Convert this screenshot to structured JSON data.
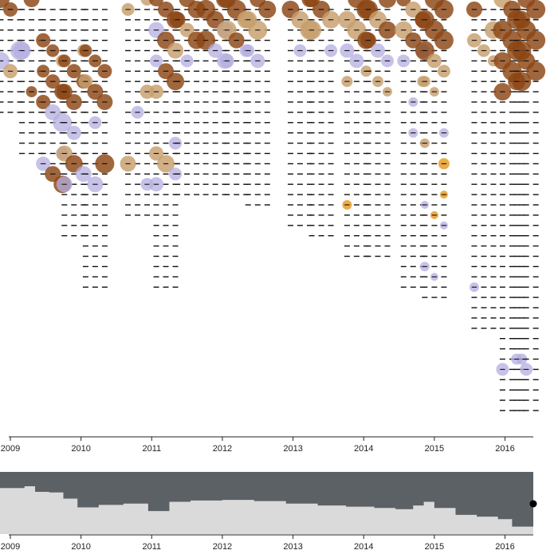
{
  "chart_data": {
    "type": "scatter",
    "x_axis": {
      "min": 2009.0,
      "max": 2016.4,
      "ticks": [
        {
          "value": 2009,
          "label": "2009"
        },
        {
          "value": 2010,
          "label": "2010"
        },
        {
          "value": 2011,
          "label": "2011"
        },
        {
          "value": 2012,
          "label": "2012"
        },
        {
          "value": 2013,
          "label": "2013"
        },
        {
          "value": 2014,
          "label": "2014"
        },
        {
          "value": 2015,
          "label": "2015"
        },
        {
          "value": 2016,
          "label": "2016"
        }
      ]
    },
    "colors": {
      "dark_brown": "#8B4513",
      "tan": "#C79F6E",
      "lavender": "#B3AEE0",
      "orange": "#E69A1E",
      "overview_fill": "#5C6166",
      "overview_area": "#DADADA",
      "axis": "#222222"
    },
    "columns": [
      {
        "x": 2009.0,
        "count": 12,
        "bubbles": [
          [
            0,
            "dark",
            11
          ],
          [
            1,
            "dark",
            9
          ],
          [
            5,
            "lav",
            12
          ],
          [
            6,
            "lav",
            11
          ],
          [
            7,
            "tan",
            9
          ]
        ]
      },
      {
        "x": 2009.3,
        "count": 16,
        "bubbles": [
          [
            0,
            "dark",
            10
          ],
          [
            5,
            "lav",
            11
          ],
          [
            9,
            "dark",
            7
          ]
        ]
      },
      {
        "x": 2009.6,
        "count": 18,
        "bubbles": [
          [
            4,
            "dark",
            9
          ],
          [
            5,
            "dark",
            8
          ],
          [
            6,
            "tan",
            8
          ],
          [
            7,
            "dark",
            8
          ],
          [
            8,
            "dark",
            9
          ],
          [
            9,
            "dark",
            10
          ],
          [
            10,
            "dark",
            9
          ],
          [
            11,
            "lav",
            10
          ],
          [
            12,
            "lav",
            12
          ],
          [
            15,
            "lav",
            8
          ],
          [
            16,
            "lav",
            9
          ],
          [
            17,
            "dark",
            10
          ],
          [
            18,
            "dark",
            11
          ]
        ]
      },
      {
        "x": 2009.9,
        "count": 24,
        "bubbles": [
          [
            5,
            "tan",
            8
          ],
          [
            6,
            "dark",
            8
          ],
          [
            7,
            "dark",
            9
          ],
          [
            8,
            "dark",
            9
          ],
          [
            9,
            "dark",
            10
          ],
          [
            10,
            "dark",
            10
          ],
          [
            13,
            "lav",
            9
          ],
          [
            15,
            "tan",
            10
          ],
          [
            16,
            "dark",
            11
          ],
          [
            17,
            "lav",
            10
          ],
          [
            18,
            "lav",
            10
          ]
        ]
      },
      {
        "x": 2010.2,
        "count": 29,
        "bubbles": [
          [
            5,
            "dark",
            8
          ],
          [
            6,
            "dark",
            8
          ],
          [
            7,
            "dark",
            9
          ],
          [
            8,
            "tan",
            9
          ],
          [
            9,
            "dark",
            10
          ],
          [
            10,
            "dark",
            10
          ],
          [
            12,
            "lav",
            8
          ],
          [
            16,
            "dark",
            12
          ],
          [
            18,
            "lav",
            10
          ]
        ]
      },
      {
        "x": 2010.8,
        "count": 22,
        "bubbles": [
          [
            0,
            "tan",
            8
          ],
          [
            1,
            "tan",
            8
          ],
          [
            9,
            "tan",
            9
          ],
          [
            11,
            "lav",
            8
          ],
          [
            16,
            "tan",
            10
          ],
          [
            18,
            "lav",
            8
          ]
        ]
      },
      {
        "x": 2011.2,
        "count": 29,
        "bubbles": [
          [
            0,
            "dark",
            9
          ],
          [
            1,
            "dark",
            10
          ],
          [
            2,
            "dark",
            11
          ],
          [
            3,
            "lav",
            10
          ],
          [
            4,
            "dark",
            11
          ],
          [
            5,
            "tan",
            10
          ],
          [
            6,
            "lav",
            8
          ],
          [
            7,
            "dark",
            10
          ],
          [
            8,
            "dark",
            11
          ],
          [
            9,
            "tan",
            9
          ],
          [
            14,
            "lav",
            8
          ],
          [
            15,
            "tan",
            9
          ],
          [
            16,
            "tan",
            11
          ],
          [
            17,
            "lav",
            8
          ],
          [
            18,
            "lav",
            9
          ]
        ]
      },
      {
        "x": 2011.5,
        "count": 20,
        "bubbles": [
          [
            0,
            "dark",
            10
          ],
          [
            1,
            "dark",
            11
          ],
          [
            2,
            "dark",
            10
          ],
          [
            3,
            "tan",
            9
          ],
          [
            4,
            "dark",
            11
          ],
          [
            6,
            "lav",
            8
          ]
        ]
      },
      {
        "x": 2011.9,
        "count": 20,
        "bubbles": [
          [
            0,
            "dark",
            11
          ],
          [
            1,
            "dark",
            12
          ],
          [
            2,
            "dark",
            11
          ],
          [
            3,
            "lav",
            10
          ],
          [
            4,
            "dark",
            12
          ],
          [
            5,
            "lav",
            9
          ],
          [
            6,
            "lav",
            10
          ]
        ]
      },
      {
        "x": 2012.2,
        "count": 20,
        "bubbles": [
          [
            0,
            "dark",
            11
          ],
          [
            1,
            "dark",
            12
          ],
          [
            2,
            "tan",
            11
          ],
          [
            3,
            "tan",
            12
          ],
          [
            4,
            "dark",
            10
          ],
          [
            5,
            "lav",
            8
          ],
          [
            6,
            "lav",
            9
          ]
        ]
      },
      {
        "x": 2012.5,
        "count": 21,
        "bubbles": [
          [
            0,
            "dark",
            10
          ],
          [
            1,
            "dark",
            11
          ],
          [
            2,
            "tan",
            11
          ],
          [
            3,
            "tan",
            12
          ],
          [
            5,
            "lav",
            8
          ],
          [
            6,
            "lav",
            9
          ]
        ]
      },
      {
        "x": 2013.1,
        "count": 23,
        "bubbles": [
          [
            0,
            "dark",
            10
          ],
          [
            1,
            "dark",
            11
          ],
          [
            2,
            "tan",
            11
          ],
          [
            3,
            "tan",
            12
          ],
          [
            5,
            "lav",
            8
          ]
        ]
      },
      {
        "x": 2013.4,
        "count": 24,
        "bubbles": [
          [
            0,
            "dark",
            10
          ],
          [
            1,
            "dark",
            11
          ],
          [
            2,
            "tan",
            11
          ],
          [
            3,
            "tan",
            12
          ],
          [
            5,
            "lav",
            8
          ]
        ]
      },
      {
        "x": 2013.9,
        "count": 26,
        "bubbles": [
          [
            0,
            "dark",
            11
          ],
          [
            1,
            "dark",
            12
          ],
          [
            2,
            "tan",
            11
          ],
          [
            3,
            "tan",
            12
          ],
          [
            4,
            "dark",
            11
          ],
          [
            5,
            "lav",
            9
          ],
          [
            6,
            "lav",
            9
          ],
          [
            7,
            "tan",
            7
          ],
          [
            8,
            "tan",
            7
          ],
          [
            20,
            "orange",
            6
          ]
        ]
      },
      {
        "x": 2014.2,
        "count": 26,
        "bubbles": [
          [
            0,
            "dark",
            11
          ],
          [
            1,
            "dark",
            12
          ],
          [
            2,
            "tan",
            11
          ],
          [
            3,
            "dark",
            11
          ],
          [
            4,
            "dark",
            10
          ],
          [
            5,
            "lav",
            9
          ],
          [
            6,
            "lav",
            8
          ],
          [
            8,
            "tan",
            7
          ],
          [
            9,
            "tan",
            6
          ]
        ]
      },
      {
        "x": 2014.7,
        "count": 29,
        "bubbles": [
          [
            0,
            "dark",
            9
          ],
          [
            1,
            "tan",
            10
          ],
          [
            2,
            "dark",
            10
          ],
          [
            3,
            "tan",
            11
          ],
          [
            4,
            "dark",
            10
          ],
          [
            5,
            "lav",
            9
          ],
          [
            6,
            "lav",
            8
          ],
          [
            8,
            "tan",
            7
          ],
          [
            10,
            "lav",
            6
          ],
          [
            13,
            "lav",
            6
          ]
        ]
      },
      {
        "x": 2015.0,
        "count": 30,
        "bubbles": [
          [
            0,
            "dark",
            12
          ],
          [
            1,
            "dark",
            12
          ],
          [
            2,
            "dark",
            12
          ],
          [
            3,
            "dark",
            12
          ],
          [
            4,
            "dark",
            12
          ],
          [
            5,
            "dark",
            12
          ],
          [
            6,
            "tan",
            9
          ],
          [
            7,
            "tan",
            8
          ],
          [
            8,
            "tan",
            7
          ],
          [
            9,
            "tan",
            6
          ],
          [
            13,
            "lav",
            6
          ],
          [
            14,
            "tan",
            6
          ],
          [
            16,
            "orange",
            7
          ],
          [
            19,
            "orange",
            5
          ],
          [
            20,
            "lav",
            5
          ],
          [
            21,
            "orange",
            5
          ],
          [
            22,
            "lav",
            5
          ],
          [
            26,
            "lav",
            6
          ],
          [
            27,
            "lav",
            5
          ]
        ]
      },
      {
        "x": 2015.7,
        "count": 33,
        "bubbles": [
          [
            1,
            "dark",
            10
          ],
          [
            3,
            "tan",
            11
          ],
          [
            4,
            "tan",
            9
          ],
          [
            5,
            "tan",
            8
          ],
          [
            6,
            "tan",
            7
          ],
          [
            28,
            "lav",
            6
          ]
        ]
      },
      {
        "x": 2016.1,
        "count": 41,
        "bubbles": [
          [
            0,
            "tan",
            11
          ],
          [
            1,
            "dark",
            11
          ],
          [
            2,
            "dark",
            11
          ],
          [
            3,
            "dark",
            12
          ],
          [
            4,
            "dark",
            12
          ],
          [
            5,
            "dark",
            12
          ],
          [
            6,
            "dark",
            11
          ],
          [
            7,
            "dark",
            12
          ],
          [
            8,
            "dark",
            12
          ],
          [
            9,
            "dark",
            11
          ],
          [
            35,
            "lav",
            7
          ],
          [
            36,
            "lav",
            8
          ]
        ]
      },
      {
        "x": 2016.3,
        "count": 41,
        "bubbles": [
          [
            0,
            "dark",
            11
          ],
          [
            1,
            "dark",
            12
          ],
          [
            2,
            "dark",
            12
          ],
          [
            3,
            "dark",
            12
          ],
          [
            4,
            "dark",
            12
          ],
          [
            5,
            "dark",
            12
          ],
          [
            6,
            "dark",
            11
          ],
          [
            7,
            "dark",
            12
          ],
          [
            8,
            "dark",
            11
          ],
          [
            35,
            "lav",
            7
          ],
          [
            36,
            "lav",
            8
          ]
        ]
      }
    ],
    "overview": {
      "steps": [
        [
          2009.0,
          0.74
        ],
        [
          2009.2,
          0.77
        ],
        [
          2009.35,
          0.68
        ],
        [
          2009.55,
          0.67
        ],
        [
          2009.75,
          0.57
        ],
        [
          2009.95,
          0.43
        ],
        [
          2010.25,
          0.47
        ],
        [
          2010.6,
          0.49
        ],
        [
          2010.95,
          0.37
        ],
        [
          2011.25,
          0.52
        ],
        [
          2011.55,
          0.54
        ],
        [
          2012.0,
          0.55
        ],
        [
          2012.45,
          0.53
        ],
        [
          2012.9,
          0.49
        ],
        [
          2013.35,
          0.46
        ],
        [
          2013.75,
          0.44
        ],
        [
          2014.15,
          0.42
        ],
        [
          2014.45,
          0.4
        ],
        [
          2014.7,
          0.46
        ],
        [
          2014.85,
          0.52
        ],
        [
          2015.0,
          0.42
        ],
        [
          2015.3,
          0.31
        ],
        [
          2015.6,
          0.28
        ],
        [
          2015.9,
          0.24
        ],
        [
          2016.1,
          0.12
        ],
        [
          2016.4,
          0.12
        ]
      ],
      "handle_color": "#000000"
    }
  }
}
